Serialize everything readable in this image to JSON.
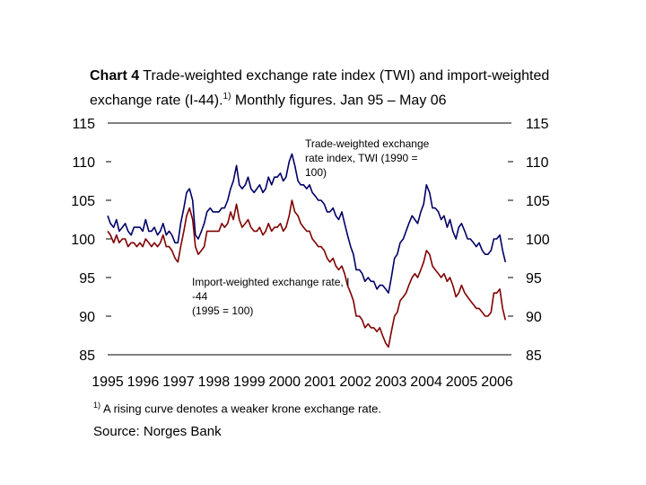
{
  "title": {
    "bold": "Chart 4",
    "text": " Trade-weighted exchange rate index (TWI) and import-weighted exchange rate (I-44).",
    "sup": "1)",
    "text2": " Monthly figures. Jan 95 – May 06"
  },
  "footnote": {
    "sup": "1)",
    "text": "A rising curve denotes a weaker krone exchange rate."
  },
  "source": "Source: Norges Bank",
  "colors": {
    "twi": "#000066",
    "i44": "#800000",
    "axis": "#000000"
  },
  "annotations": {
    "twi": [
      "Trade-weighted exchange",
      "rate index, TWI (1990 =",
      "100)"
    ],
    "i44": [
      "Import-weighted exchange rate, I",
      "-44",
      "(1995 = 100)"
    ]
  },
  "chart_data": {
    "type": "line",
    "title": "Trade-weighted exchange rate index (TWI) and import-weighted exchange rate (I-44). Monthly figures. Jan 95 – May 06",
    "xlabel": "",
    "ylabel": "",
    "ylim": [
      85,
      115
    ],
    "xlim": [
      1995.0,
      2006.5
    ],
    "yticks": [
      85,
      90,
      95,
      100,
      105,
      110,
      115
    ],
    "xticks": [
      "1995",
      "1996",
      "1997",
      "1998",
      "1999",
      "2000",
      "2001",
      "2002",
      "2003",
      "2004",
      "2005",
      "2006"
    ],
    "grid": false,
    "series": [
      {
        "name": "Trade-weighted exchange rate index, TWI (1990 = 100)",
        "points": [
          [
            1995.0,
            103
          ],
          [
            1995.08,
            102
          ],
          [
            1995.17,
            101.5
          ],
          [
            1995.25,
            102.5
          ],
          [
            1995.33,
            101
          ],
          [
            1995.42,
            101.5
          ],
          [
            1995.5,
            102
          ],
          [
            1995.58,
            101
          ],
          [
            1995.67,
            100.5
          ],
          [
            1995.75,
            101.5
          ],
          [
            1995.83,
            101.5
          ],
          [
            1995.92,
            101.5
          ],
          [
            1996.0,
            101
          ],
          [
            1996.08,
            102.5
          ],
          [
            1996.17,
            101
          ],
          [
            1996.25,
            101
          ],
          [
            1996.33,
            101.5
          ],
          [
            1996.42,
            100.5
          ],
          [
            1996.5,
            101
          ],
          [
            1996.58,
            102
          ],
          [
            1996.67,
            100.5
          ],
          [
            1996.75,
            101
          ],
          [
            1996.83,
            100.5
          ],
          [
            1996.92,
            99.5
          ],
          [
            1997.0,
            99.5
          ],
          [
            1997.08,
            102
          ],
          [
            1997.17,
            104
          ],
          [
            1997.25,
            106
          ],
          [
            1997.33,
            106.5
          ],
          [
            1997.42,
            105
          ],
          [
            1997.5,
            100.5
          ],
          [
            1997.58,
            100
          ],
          [
            1997.67,
            101
          ],
          [
            1997.75,
            102
          ],
          [
            1997.83,
            103.5
          ],
          [
            1997.92,
            104
          ],
          [
            1998.0,
            103.5
          ],
          [
            1998.08,
            103.5
          ],
          [
            1998.17,
            103.5
          ],
          [
            1998.25,
            104
          ],
          [
            1998.33,
            104
          ],
          [
            1998.42,
            105
          ],
          [
            1998.5,
            106.5
          ],
          [
            1998.58,
            107.5
          ],
          [
            1998.67,
            109.5
          ],
          [
            1998.75,
            107
          ],
          [
            1998.83,
            106.5
          ],
          [
            1998.92,
            107
          ],
          [
            1999.0,
            108
          ],
          [
            1999.08,
            106.5
          ],
          [
            1999.17,
            106
          ],
          [
            1999.25,
            106.5
          ],
          [
            1999.33,
            107
          ],
          [
            1999.42,
            106
          ],
          [
            1999.5,
            106.5
          ],
          [
            1999.58,
            108
          ],
          [
            1999.67,
            107
          ],
          [
            1999.75,
            108
          ],
          [
            1999.83,
            108
          ],
          [
            1999.92,
            108.5
          ],
          [
            2000.0,
            107.5
          ],
          [
            2000.08,
            108
          ],
          [
            2000.17,
            110
          ],
          [
            2000.25,
            111
          ],
          [
            2000.33,
            109.5
          ],
          [
            2000.42,
            107.5
          ],
          [
            2000.5,
            107
          ],
          [
            2000.58,
            107
          ],
          [
            2000.67,
            106.5
          ],
          [
            2000.75,
            107
          ],
          [
            2000.83,
            106
          ],
          [
            2000.92,
            105.5
          ],
          [
            2001.0,
            105
          ],
          [
            2001.08,
            105
          ],
          [
            2001.17,
            104.5
          ],
          [
            2001.25,
            103.5
          ],
          [
            2001.33,
            103.5
          ],
          [
            2001.42,
            104
          ],
          [
            2001.5,
            103
          ],
          [
            2001.58,
            102.5
          ],
          [
            2001.67,
            103.5
          ],
          [
            2001.75,
            102
          ],
          [
            2001.83,
            100.5
          ],
          [
            2001.92,
            99
          ],
          [
            2002.0,
            98
          ],
          [
            2002.08,
            96
          ],
          [
            2002.17,
            96
          ],
          [
            2002.25,
            95.5
          ],
          [
            2002.33,
            94.5
          ],
          [
            2002.42,
            95
          ],
          [
            2002.5,
            94.5
          ],
          [
            2002.58,
            94.5
          ],
          [
            2002.67,
            93.5
          ],
          [
            2002.75,
            94
          ],
          [
            2002.83,
            94
          ],
          [
            2002.92,
            93.5
          ],
          [
            2003.0,
            93
          ],
          [
            2003.08,
            95
          ],
          [
            2003.17,
            97.5
          ],
          [
            2003.25,
            98
          ],
          [
            2003.33,
            99.5
          ],
          [
            2003.42,
            100
          ],
          [
            2003.5,
            101
          ],
          [
            2003.58,
            102
          ],
          [
            2003.67,
            103
          ],
          [
            2003.75,
            102.5
          ],
          [
            2003.83,
            102
          ],
          [
            2003.92,
            103.5
          ],
          [
            2004.0,
            104.5
          ],
          [
            2004.08,
            107
          ],
          [
            2004.17,
            106
          ],
          [
            2004.25,
            104
          ],
          [
            2004.33,
            104
          ],
          [
            2004.42,
            103.5
          ],
          [
            2004.5,
            102.5
          ],
          [
            2004.58,
            103
          ],
          [
            2004.67,
            101.5
          ],
          [
            2004.75,
            102.5
          ],
          [
            2004.83,
            101
          ],
          [
            2004.92,
            100
          ],
          [
            2005.0,
            101.5
          ],
          [
            2005.08,
            102
          ],
          [
            2005.17,
            101
          ],
          [
            2005.25,
            100
          ],
          [
            2005.33,
            100
          ],
          [
            2005.42,
            99.5
          ],
          [
            2005.5,
            99
          ],
          [
            2005.58,
            99.5
          ],
          [
            2005.67,
            98.5
          ],
          [
            2005.75,
            98
          ],
          [
            2005.83,
            98
          ],
          [
            2005.92,
            98.5
          ],
          [
            2006.0,
            100
          ],
          [
            2006.08,
            100
          ],
          [
            2006.17,
            100.5
          ],
          [
            2006.25,
            98.5
          ],
          [
            2006.33,
            97
          ]
        ]
      },
      {
        "name": "Import-weighted exchange rate, I-44 (1995 = 100)",
        "points": [
          [
            1995.0,
            101
          ],
          [
            1995.08,
            100.5
          ],
          [
            1995.17,
            99.5
          ],
          [
            1995.25,
            100.5
          ],
          [
            1995.33,
            99.5
          ],
          [
            1995.42,
            100
          ],
          [
            1995.5,
            100
          ],
          [
            1995.58,
            99
          ],
          [
            1995.67,
            99.5
          ],
          [
            1995.75,
            99.5
          ],
          [
            1995.83,
            99
          ],
          [
            1995.92,
            99.5
          ],
          [
            1996.0,
            99
          ],
          [
            1996.08,
            100
          ],
          [
            1996.17,
            99.5
          ],
          [
            1996.25,
            99
          ],
          [
            1996.33,
            99.5
          ],
          [
            1996.42,
            99
          ],
          [
            1996.5,
            99.5
          ],
          [
            1996.58,
            100.5
          ],
          [
            1996.67,
            99
          ],
          [
            1996.75,
            99
          ],
          [
            1996.83,
            98.5
          ],
          [
            1996.92,
            97.5
          ],
          [
            1997.0,
            97
          ],
          [
            1997.08,
            99
          ],
          [
            1997.17,
            101
          ],
          [
            1997.25,
            103
          ],
          [
            1997.33,
            104
          ],
          [
            1997.42,
            102.5
          ],
          [
            1997.5,
            99
          ],
          [
            1997.58,
            98
          ],
          [
            1997.67,
            98.5
          ],
          [
            1997.75,
            99
          ],
          [
            1997.83,
            101
          ],
          [
            1997.92,
            101
          ],
          [
            1998.0,
            101
          ],
          [
            1998.08,
            101
          ],
          [
            1998.17,
            101
          ],
          [
            1998.25,
            102
          ],
          [
            1998.33,
            101.5
          ],
          [
            1998.42,
            102
          ],
          [
            1998.5,
            103.5
          ],
          [
            1998.58,
            102.5
          ],
          [
            1998.67,
            104.5
          ],
          [
            1998.75,
            102.5
          ],
          [
            1998.83,
            101.5
          ],
          [
            1998.92,
            102
          ],
          [
            1999.0,
            102.5
          ],
          [
            1999.08,
            101.5
          ],
          [
            1999.17,
            101
          ],
          [
            1999.25,
            101
          ],
          [
            1999.33,
            101.5
          ],
          [
            1999.42,
            100.5
          ],
          [
            1999.5,
            101
          ],
          [
            1999.58,
            102
          ],
          [
            1999.67,
            101
          ],
          [
            1999.75,
            101.5
          ],
          [
            1999.83,
            101.5
          ],
          [
            1999.92,
            102
          ],
          [
            2000.0,
            101
          ],
          [
            2000.08,
            101.5
          ],
          [
            2000.17,
            103
          ],
          [
            2000.25,
            105
          ],
          [
            2000.33,
            103.5
          ],
          [
            2000.42,
            103
          ],
          [
            2000.5,
            102
          ],
          [
            2000.58,
            101.5
          ],
          [
            2000.67,
            101
          ],
          [
            2000.75,
            101
          ],
          [
            2000.83,
            100
          ],
          [
            2000.92,
            99.5
          ],
          [
            2001.0,
            99
          ],
          [
            2001.08,
            99
          ],
          [
            2001.17,
            98.5
          ],
          [
            2001.25,
            97.5
          ],
          [
            2001.33,
            97
          ],
          [
            2001.42,
            97.5
          ],
          [
            2001.5,
            96.5
          ],
          [
            2001.58,
            96
          ],
          [
            2001.67,
            96.5
          ],
          [
            2001.75,
            95.5
          ],
          [
            2001.83,
            94
          ],
          [
            2001.92,
            93
          ],
          [
            2002.0,
            92
          ],
          [
            2002.08,
            90
          ],
          [
            2002.17,
            90
          ],
          [
            2002.25,
            89.5
          ],
          [
            2002.33,
            88.5
          ],
          [
            2002.42,
            89
          ],
          [
            2002.5,
            88.5
          ],
          [
            2002.58,
            88.5
          ],
          [
            2002.67,
            88
          ],
          [
            2002.75,
            88.5
          ],
          [
            2002.83,
            87.5
          ],
          [
            2002.92,
            86.5
          ],
          [
            2003.0,
            86
          ],
          [
            2003.08,
            88
          ],
          [
            2003.17,
            90
          ],
          [
            2003.25,
            90.5
          ],
          [
            2003.33,
            92
          ],
          [
            2003.42,
            92.5
          ],
          [
            2003.5,
            93
          ],
          [
            2003.58,
            94
          ],
          [
            2003.67,
            95
          ],
          [
            2003.75,
            95.5
          ],
          [
            2003.83,
            95
          ],
          [
            2003.92,
            96
          ],
          [
            2004.0,
            97
          ],
          [
            2004.08,
            98.5
          ],
          [
            2004.17,
            98
          ],
          [
            2004.25,
            96.5
          ],
          [
            2004.33,
            96
          ],
          [
            2004.42,
            95.5
          ],
          [
            2004.5,
            95
          ],
          [
            2004.58,
            95.5
          ],
          [
            2004.67,
            94.5
          ],
          [
            2004.75,
            95
          ],
          [
            2004.83,
            94
          ],
          [
            2004.92,
            92.5
          ],
          [
            2005.0,
            93
          ],
          [
            2005.08,
            94
          ],
          [
            2005.17,
            93
          ],
          [
            2005.25,
            92.5
          ],
          [
            2005.33,
            92
          ],
          [
            2005.42,
            91.5
          ],
          [
            2005.5,
            91
          ],
          [
            2005.58,
            91
          ],
          [
            2005.67,
            90.5
          ],
          [
            2005.75,
            90
          ],
          [
            2005.83,
            90
          ],
          [
            2005.92,
            90.5
          ],
          [
            2006.0,
            93
          ],
          [
            2006.08,
            93
          ],
          [
            2006.17,
            93.5
          ],
          [
            2006.25,
            91
          ],
          [
            2006.33,
            89.5
          ]
        ]
      }
    ]
  }
}
